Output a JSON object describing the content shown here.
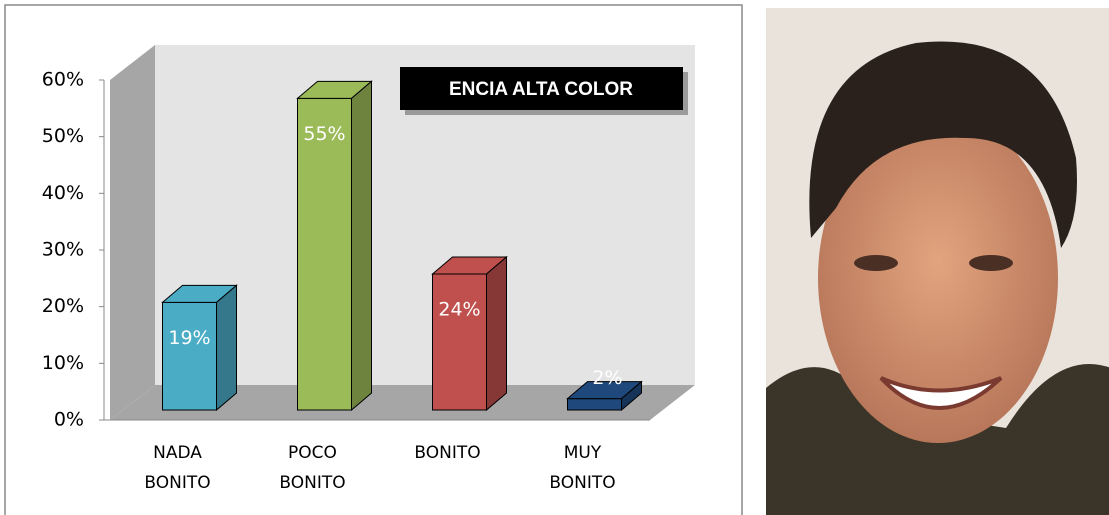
{
  "chart_data": {
    "type": "bar",
    "title": "ENCIA ALTA COLOR",
    "categories": [
      "NADA BONITO",
      "POCO BONITO",
      "BONITO",
      "MUY BONITO"
    ],
    "values": [
      19,
      55,
      24,
      2
    ],
    "value_labels": [
      "19%",
      "55%",
      "24%",
      "2%"
    ],
    "colors": [
      "#4bacc6",
      "#9bbb59",
      "#c0504d",
      "#1f497d"
    ],
    "ylim": [
      0,
      60
    ],
    "yticks": [
      {
        "value": 0,
        "label": "0%"
      },
      {
        "value": 10,
        "label": "10%"
      },
      {
        "value": 20,
        "label": "20%"
      },
      {
        "value": 30,
        "label": "30%"
      },
      {
        "value": 40,
        "label": "40%"
      },
      {
        "value": 50,
        "label": "50%"
      },
      {
        "value": 60,
        "label": "60%"
      }
    ]
  }
}
